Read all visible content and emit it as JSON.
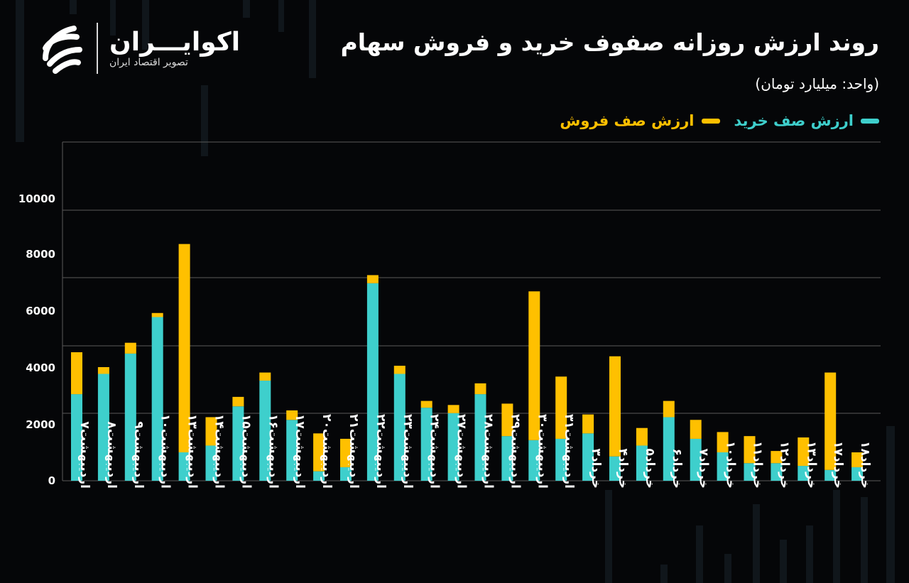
{
  "header": {
    "title": "روند ارزش روزانه صفوف خرید و فروش سهام",
    "unit": "(واحد: میلیارد تومان)"
  },
  "logo": {
    "name": "اکوایـــران",
    "tagline": "تصویر اقتصاد ایران"
  },
  "colors": {
    "buy": "#3ecfcc",
    "sell": "#ffc000",
    "grid": "#5a5a5a",
    "background": "#050608"
  },
  "chart_data": {
    "type": "bar",
    "stacked": true,
    "categories": [
      "اردیبهشت۷",
      "اردیبهشت۸",
      "اردیبهشت۹",
      "اردیبهشت۱۰",
      "اردیبهشت۱۳",
      "اردیبهشت۱۴",
      "اردیبهشت۱۵",
      "اردیبهشت۱۶",
      "اردیبهشت۱۷",
      "اردیبهشت۲۰",
      "اردیبهشت۲۱",
      "اردیبهشت۲۲",
      "اردیبهشت۲۳",
      "اردیبهشت۲۴",
      "اردیبهشت۲۷",
      "اردیبهشت۲۸",
      "اردیبهشت۲۹",
      "اردیبهشت۳۰",
      "اردیبهشت۳۱",
      "خرداد۳",
      "خرداد۴",
      "خرداد۵",
      "خرداد۶",
      "خرداد۷",
      "خرداد۱۰",
      "خرداد۱۱",
      "خرداد۱۲",
      "خرداد۱۳",
      "خرداد۱۷",
      "خرداد۱۸"
    ],
    "series": [
      {
        "name": "ارزش صف خرید",
        "values": [
          3200,
          3950,
          4700,
          6050,
          1050,
          1300,
          2750,
          3700,
          2250,
          350,
          500,
          7300,
          3950,
          2700,
          2500,
          3200,
          1650,
          1500,
          1550,
          1750,
          900,
          1300,
          2350,
          1550,
          1050,
          650,
          650,
          550,
          400,
          500
        ]
      },
      {
        "name": "ارزش صف فروش",
        "values": [
          1550,
          250,
          400,
          150,
          7700,
          1050,
          350,
          300,
          350,
          1400,
          1050,
          300,
          300,
          250,
          300,
          400,
          1200,
          5500,
          2300,
          700,
          3700,
          650,
          600,
          700,
          750,
          1000,
          450,
          1050,
          3600,
          550
        ]
      }
    ],
    "ylim": [
      0,
      10000
    ],
    "yticks": [
      0,
      2000,
      4000,
      6000,
      8000,
      10000
    ],
    "ytick_labels": [
      "0",
      "2000",
      "4000",
      "6000",
      "8000",
      "10000"
    ],
    "grid": true,
    "legend_position": "top-right"
  }
}
